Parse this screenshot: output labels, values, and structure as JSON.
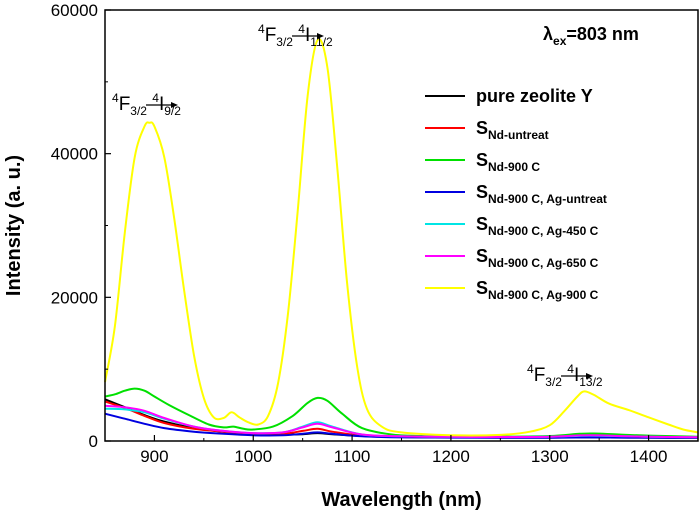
{
  "chart_data": {
    "type": "line",
    "xlabel": "Wavelength (nm)",
    "ylabel": "Intensity (a. u.)",
    "xlim": [
      850,
      1450
    ],
    "ylim": [
      0,
      60000
    ],
    "x_ticks": [
      900,
      1000,
      1100,
      1200,
      1300,
      1400
    ],
    "y_ticks": [
      0,
      20000,
      40000,
      60000
    ],
    "excitation_label": {
      "main": "λ",
      "sub": "ex",
      "rest": "=803 nm"
    },
    "legend_position": "right",
    "annotations": [
      {
        "sup1": "4",
        "main1": "F",
        "sub1": "3/2",
        "sup2": "4",
        "main2": "I",
        "sub2": "9/2",
        "x": 900,
        "y": 46500
      },
      {
        "sup1": "4",
        "main1": "F",
        "sub1": "3/2",
        "sup2": "4",
        "main2": "I",
        "sub2": "11/2",
        "x": 1065,
        "y": 56500
      },
      {
        "sup1": "4",
        "main1": "F",
        "sub1": "3/2",
        "sup2": "4",
        "main2": "I",
        "sub2": "13/2",
        "x": 1340,
        "y": 7500
      }
    ],
    "series": [
      {
        "name": "pure zeolite Y",
        "name_main": "pure zeolite Y",
        "name_sub": "",
        "color": "#000000",
        "points": [
          [
            850,
            5800
          ],
          [
            870,
            4700
          ],
          [
            890,
            3600
          ],
          [
            910,
            2700
          ],
          [
            940,
            1800
          ],
          [
            970,
            1300
          ],
          [
            1000,
            1000
          ],
          [
            1030,
            900
          ],
          [
            1050,
            950
          ],
          [
            1065,
            1100
          ],
          [
            1080,
            950
          ],
          [
            1110,
            700
          ],
          [
            1150,
            550
          ],
          [
            1200,
            500
          ],
          [
            1250,
            480
          ],
          [
            1300,
            480
          ],
          [
            1340,
            500
          ],
          [
            1380,
            480
          ],
          [
            1420,
            460
          ],
          [
            1450,
            450
          ]
        ]
      },
      {
        "name": "SNd-untreat",
        "name_main": "S",
        "name_sub": "Nd-untreat",
        "color": "#ff0000",
        "points": [
          [
            850,
            5500
          ],
          [
            870,
            4600
          ],
          [
            890,
            3500
          ],
          [
            910,
            2500
          ],
          [
            940,
            1700
          ],
          [
            970,
            1300
          ],
          [
            1000,
            1000
          ],
          [
            1030,
            1000
          ],
          [
            1050,
            1400
          ],
          [
            1065,
            1700
          ],
          [
            1080,
            1300
          ],
          [
            1110,
            750
          ],
          [
            1150,
            600
          ],
          [
            1200,
            550
          ],
          [
            1250,
            500
          ],
          [
            1300,
            520
          ],
          [
            1340,
            600
          ],
          [
            1380,
            550
          ],
          [
            1420,
            500
          ],
          [
            1450,
            480
          ]
        ]
      },
      {
        "name": "SNd-900 C",
        "name_main": "S",
        "name_sub": "Nd-900 C",
        "color": "#00e000",
        "points": [
          [
            850,
            6200
          ],
          [
            860,
            6500
          ],
          [
            870,
            7000
          ],
          [
            880,
            7300
          ],
          [
            890,
            7000
          ],
          [
            900,
            6200
          ],
          [
            915,
            5000
          ],
          [
            935,
            3600
          ],
          [
            955,
            2300
          ],
          [
            970,
            1900
          ],
          [
            980,
            2000
          ],
          [
            990,
            1700
          ],
          [
            1000,
            1600
          ],
          [
            1020,
            2000
          ],
          [
            1040,
            3500
          ],
          [
            1055,
            5300
          ],
          [
            1065,
            6000
          ],
          [
            1075,
            5600
          ],
          [
            1090,
            3800
          ],
          [
            1110,
            1800
          ],
          [
            1140,
            900
          ],
          [
            1170,
            700
          ],
          [
            1200,
            650
          ],
          [
            1250,
            600
          ],
          [
            1300,
            700
          ],
          [
            1330,
            1000
          ],
          [
            1345,
            1050
          ],
          [
            1370,
            900
          ],
          [
            1400,
            750
          ],
          [
            1450,
            600
          ]
        ]
      },
      {
        "name": "SNd-900 C, Ag-untreat",
        "name_main": "S",
        "name_sub": "Nd-900 C, Ag-untreat",
        "color": "#0000e0",
        "points": [
          [
            850,
            3800
          ],
          [
            870,
            3100
          ],
          [
            890,
            2400
          ],
          [
            910,
            1800
          ],
          [
            940,
            1300
          ],
          [
            970,
            1000
          ],
          [
            1000,
            800
          ],
          [
            1030,
            800
          ],
          [
            1050,
            1000
          ],
          [
            1065,
            1200
          ],
          [
            1080,
            1000
          ],
          [
            1110,
            650
          ],
          [
            1150,
            500
          ],
          [
            1200,
            480
          ],
          [
            1250,
            450
          ],
          [
            1300,
            460
          ],
          [
            1340,
            500
          ],
          [
            1380,
            470
          ],
          [
            1420,
            450
          ],
          [
            1450,
            430
          ]
        ]
      },
      {
        "name": "SNd-900 C, Ag-450 C",
        "name_main": "S",
        "name_sub": "Nd-900 C, Ag-450 C",
        "color": "#00e5e5",
        "points": [
          [
            850,
            4500
          ],
          [
            870,
            4400
          ],
          [
            890,
            4000
          ],
          [
            910,
            3100
          ],
          [
            940,
            2000
          ],
          [
            970,
            1400
          ],
          [
            1000,
            1100
          ],
          [
            1030,
            1200
          ],
          [
            1050,
            2000
          ],
          [
            1065,
            2600
          ],
          [
            1080,
            2000
          ],
          [
            1110,
            900
          ],
          [
            1150,
            650
          ],
          [
            1200,
            580
          ],
          [
            1250,
            550
          ],
          [
            1300,
            600
          ],
          [
            1340,
            750
          ],
          [
            1380,
            650
          ],
          [
            1420,
            560
          ],
          [
            1450,
            520
          ]
        ]
      },
      {
        "name": "SNd-900 C, Ag-650 C",
        "name_main": "S",
        "name_sub": "Nd-900 C, Ag-650 C",
        "color": "#ff00ff",
        "points": [
          [
            850,
            4900
          ],
          [
            870,
            4700
          ],
          [
            890,
            4200
          ],
          [
            910,
            3200
          ],
          [
            940,
            2000
          ],
          [
            970,
            1400
          ],
          [
            1000,
            1100
          ],
          [
            1030,
            1200
          ],
          [
            1050,
            1900
          ],
          [
            1065,
            2400
          ],
          [
            1080,
            1900
          ],
          [
            1110,
            900
          ],
          [
            1150,
            650
          ],
          [
            1200,
            580
          ],
          [
            1250,
            550
          ],
          [
            1300,
            600
          ],
          [
            1340,
            800
          ],
          [
            1380,
            650
          ],
          [
            1420,
            560
          ],
          [
            1450,
            520
          ]
        ]
      },
      {
        "name": "SNd-900 C, Ag-900 C",
        "name_main": "S",
        "name_sub": "Nd-900 C, Ag-900 C",
        "color": "#ffff00",
        "points": [
          [
            850,
            8200
          ],
          [
            860,
            16000
          ],
          [
            870,
            29000
          ],
          [
            880,
            39500
          ],
          [
            890,
            43800
          ],
          [
            895,
            44300
          ],
          [
            900,
            43800
          ],
          [
            910,
            39500
          ],
          [
            920,
            31000
          ],
          [
            930,
            21000
          ],
          [
            940,
            12000
          ],
          [
            950,
            6000
          ],
          [
            960,
            3300
          ],
          [
            970,
            3200
          ],
          [
            978,
            4000
          ],
          [
            986,
            3300
          ],
          [
            995,
            2600
          ],
          [
            1005,
            2300
          ],
          [
            1015,
            3500
          ],
          [
            1025,
            8000
          ],
          [
            1035,
            17500
          ],
          [
            1045,
            32000
          ],
          [
            1055,
            48000
          ],
          [
            1065,
            55800
          ],
          [
            1075,
            52000
          ],
          [
            1085,
            38000
          ],
          [
            1095,
            22000
          ],
          [
            1105,
            10500
          ],
          [
            1115,
            4500
          ],
          [
            1130,
            2000
          ],
          [
            1150,
            1200
          ],
          [
            1200,
            800
          ],
          [
            1250,
            850
          ],
          [
            1280,
            1300
          ],
          [
            1300,
            2200
          ],
          [
            1315,
            4200
          ],
          [
            1328,
            6200
          ],
          [
            1335,
            6900
          ],
          [
            1345,
            6400
          ],
          [
            1360,
            5200
          ],
          [
            1380,
            4300
          ],
          [
            1400,
            3300
          ],
          [
            1420,
            2300
          ],
          [
            1435,
            1600
          ],
          [
            1450,
            1200
          ]
        ]
      }
    ]
  }
}
